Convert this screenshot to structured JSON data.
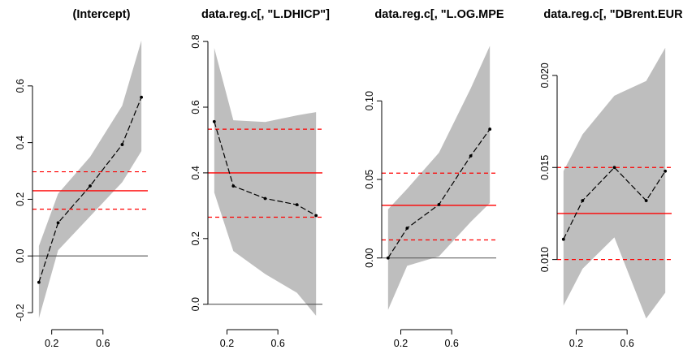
{
  "chart_data": [
    {
      "type": "line",
      "title": "(Intercept)",
      "xlim": [
        0.05,
        0.95
      ],
      "ylim": [
        -0.24,
        0.78
      ],
      "x_ticks": [
        0.2,
        0.6
      ],
      "x_tick_labels": [
        "0.2",
        "0.6"
      ],
      "y_ticks": [
        -0.2,
        0.0,
        0.2,
        0.4,
        0.6
      ],
      "y_tick_labels": [
        "-0.2",
        "0.0",
        "0.2",
        "0.4",
        "0.6"
      ],
      "x": [
        0.1,
        0.25,
        0.5,
        0.75,
        0.9
      ],
      "estimate": [
        -0.093,
        0.117,
        0.247,
        0.393,
        0.56
      ],
      "band_lower": [
        -0.22,
        0.02,
        0.14,
        0.26,
        0.37
      ],
      "band_upper": [
        0.035,
        0.22,
        0.35,
        0.53,
        0.76
      ],
      "ols_estimate": 0.23,
      "ols_lower": 0.165,
      "ols_upper": 0.297,
      "zero_line": 0.0
    },
    {
      "type": "line",
      "title": "data.reg.c[, \"L.DHICP\"]",
      "xlim": [
        0.05,
        0.95
      ],
      "ylim": [
        -0.06,
        0.82
      ],
      "x_ticks": [
        0.2,
        0.6
      ],
      "x_tick_labels": [
        "0.2",
        "0.6"
      ],
      "y_ticks": [
        0.0,
        0.2,
        0.4,
        0.6,
        0.8
      ],
      "y_tick_labels": [
        "0.0",
        "0.2",
        "0.4",
        "0.6",
        "0.8"
      ],
      "x": [
        0.1,
        0.25,
        0.5,
        0.75,
        0.9
      ],
      "estimate": [
        0.556,
        0.36,
        0.322,
        0.303,
        0.27
      ],
      "band_lower": [
        0.34,
        0.162,
        0.092,
        0.035,
        -0.035
      ],
      "band_upper": [
        0.78,
        0.56,
        0.555,
        0.575,
        0.585
      ],
      "ols_estimate": 0.4,
      "ols_lower": 0.265,
      "ols_upper": 0.533,
      "zero_line": 0.0
    },
    {
      "type": "line",
      "title": "data.reg.c[, \"L.OG.MPE",
      "xlim": [
        0.05,
        0.95
      ],
      "ylim": [
        -0.042,
        0.142
      ],
      "x_ticks": [
        0.2,
        0.6
      ],
      "x_tick_labels": [
        "0.2",
        "0.6"
      ],
      "y_ticks": [
        0.0,
        0.05,
        0.1
      ],
      "y_tick_labels": [
        "0.00",
        "0.05",
        "0.10"
      ],
      "x": [
        0.1,
        0.25,
        0.5,
        0.75,
        0.9
      ],
      "estimate": [
        0.0,
        0.019,
        0.034,
        0.065,
        0.082
      ],
      "band_lower": [
        -0.033,
        -0.005,
        0.001,
        0.023,
        0.035
      ],
      "band_upper": [
        0.031,
        0.044,
        0.067,
        0.108,
        0.135
      ],
      "ols_estimate": 0.0335,
      "ols_lower": 0.0115,
      "ols_upper": 0.054,
      "zero_line": 0.0
    },
    {
      "type": "line",
      "title": "data.reg.c[, \"DBrent.EUR",
      "xlim": [
        0.05,
        0.95
      ],
      "ylim": [
        0.0065,
        0.0222
      ],
      "x_ticks": [
        0.2,
        0.6
      ],
      "x_tick_labels": [
        "0.2",
        "0.6"
      ],
      "y_ticks": [
        0.01,
        0.015,
        0.02
      ],
      "y_tick_labels": [
        "0.010",
        "0.015",
        "0.020"
      ],
      "x": [
        0.1,
        0.25,
        0.5,
        0.75,
        0.9
      ],
      "estimate": [
        0.0111,
        0.0132,
        0.015,
        0.0132,
        0.0148
      ],
      "band_lower": [
        0.0075,
        0.0095,
        0.0112,
        0.0068,
        0.0082
      ],
      "band_upper": [
        0.0148,
        0.0168,
        0.0189,
        0.0197,
        0.0215
      ],
      "ols_estimate": 0.0125,
      "ols_lower": 0.01,
      "ols_upper": 0.015,
      "zero_line": null
    }
  ],
  "colors": {
    "band": "#bebebe",
    "estimate_line": "#000000",
    "ols_line": "#ff0000",
    "zero_line": "#555555",
    "axis": "#000000"
  }
}
